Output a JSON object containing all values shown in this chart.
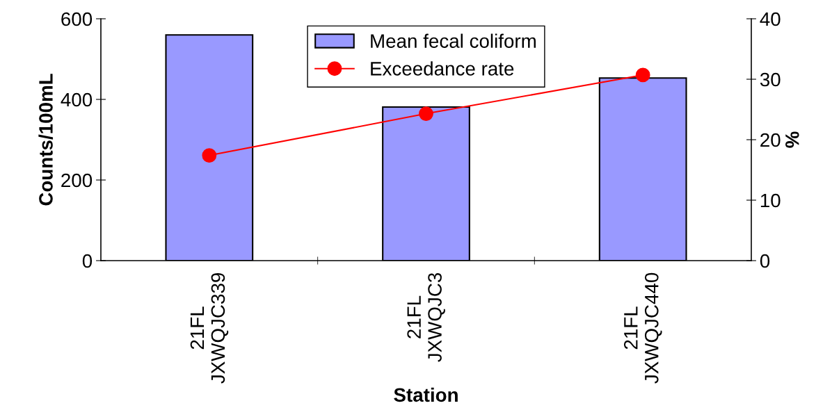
{
  "chart_data": {
    "type": "bar",
    "xlabel": "Station",
    "ylabel": "Counts/100mL",
    "y2label": "%",
    "categories": [
      "21FL\nJXWQJC339",
      "21FL\nJXWQJC3",
      "21FL\nJXWQJC440"
    ],
    "series": [
      {
        "name": "Mean fecal coliform",
        "color": "#9999ff",
        "values": [
          560,
          381,
          453
        ]
      },
      {
        "name": "Exceedance rate",
        "type": "line",
        "axis": "y2",
        "color": "#ff0000",
        "marker": "circle",
        "values": [
          17.4,
          24.3,
          30.7
        ]
      }
    ],
    "ylim": [
      0,
      600
    ],
    "yticks": [
      0,
      200,
      400,
      600
    ],
    "y2lim": [
      0,
      40
    ],
    "y2ticks": [
      0,
      10,
      20,
      30,
      40
    ],
    "grid": false,
    "legend": "top"
  }
}
